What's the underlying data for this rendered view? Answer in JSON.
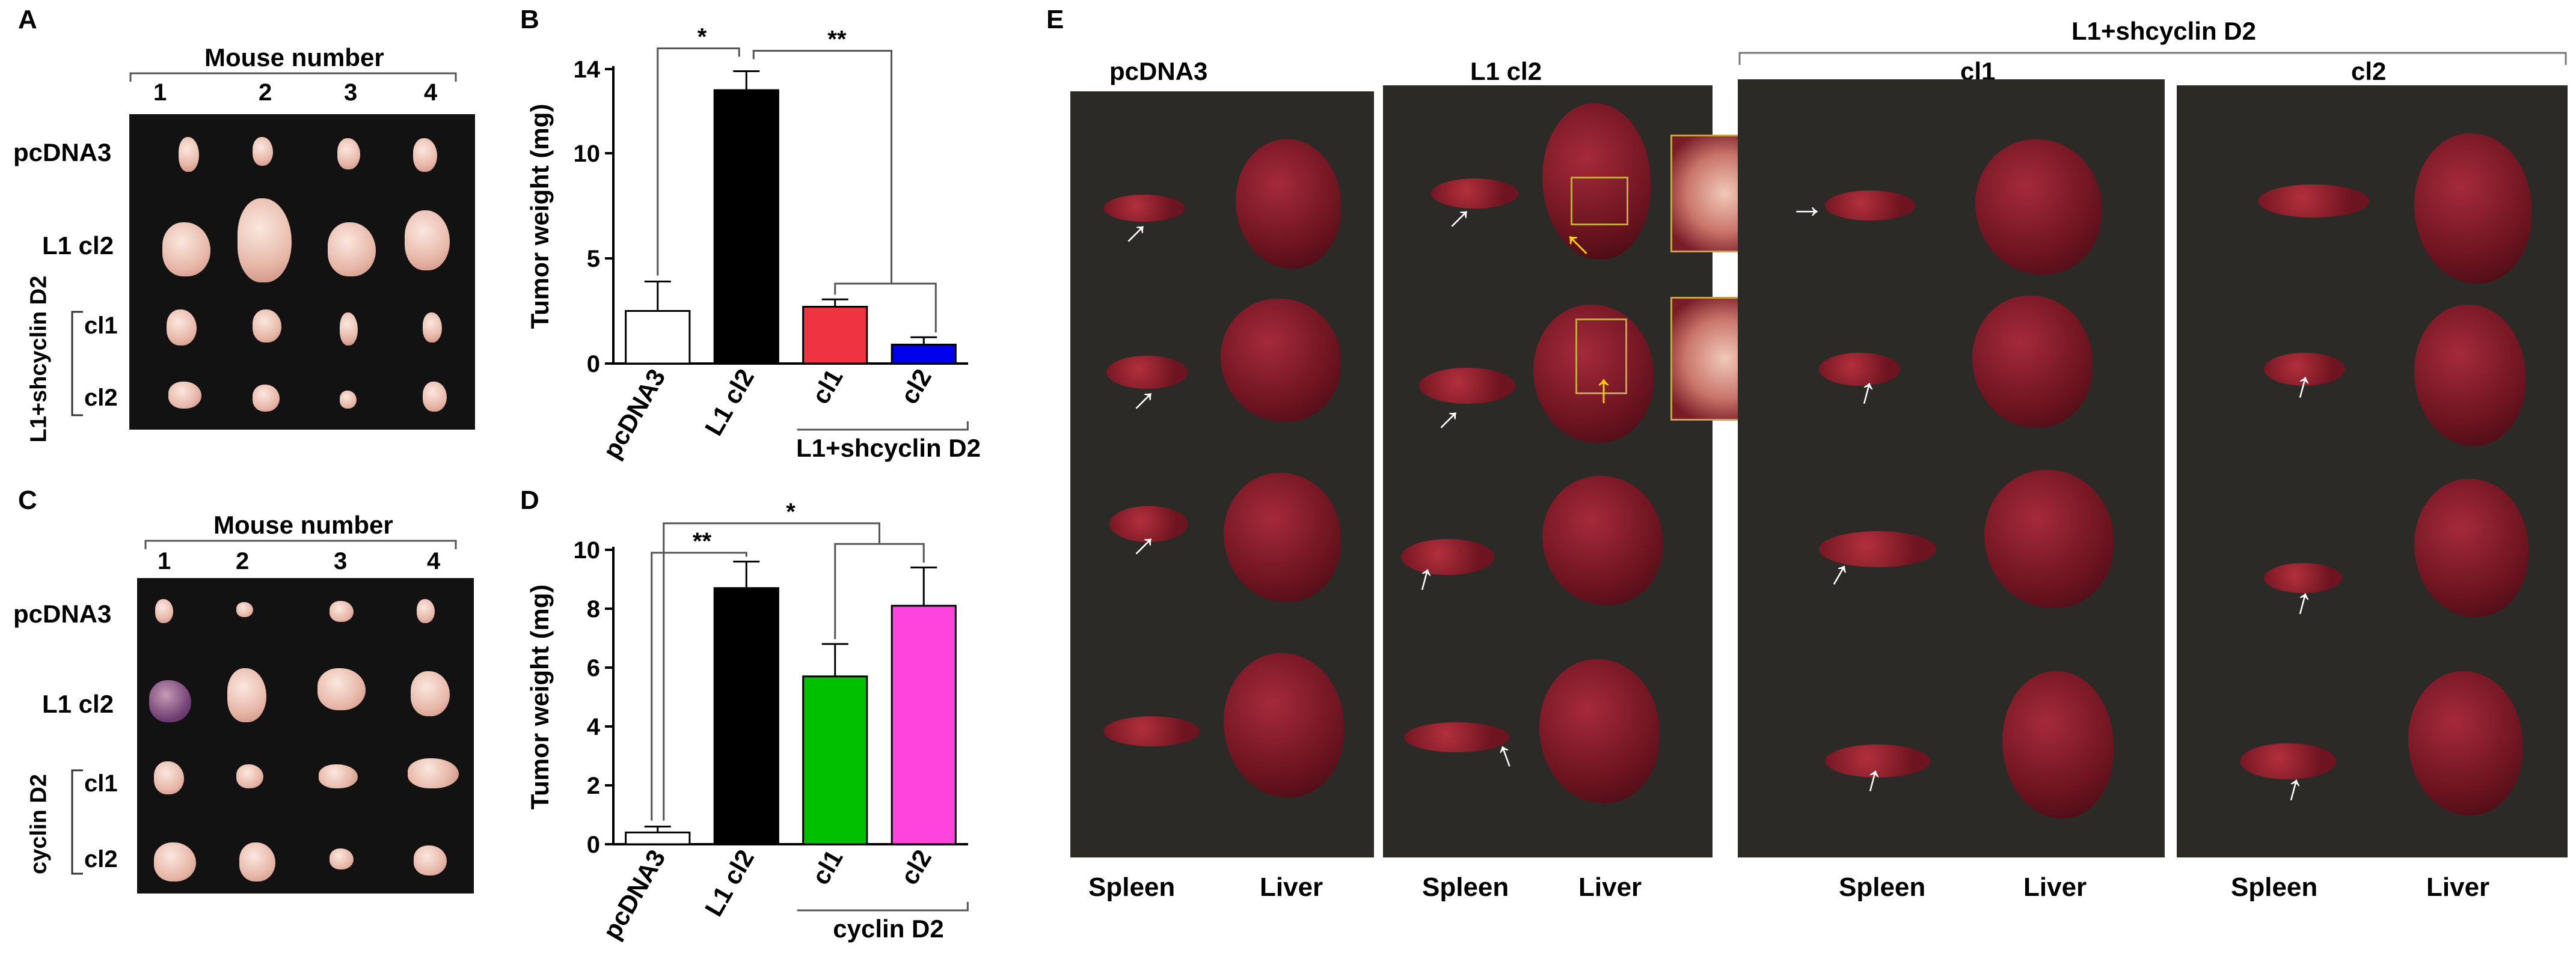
{
  "panel_labels": {
    "A": "A",
    "B": "B",
    "C": "C",
    "D": "D",
    "E": "E"
  },
  "panelA": {
    "header": "Mouse number",
    "mice": [
      "1",
      "2",
      "3",
      "4"
    ],
    "rows": [
      "pcDNA3",
      "L1 cl2",
      "cl1",
      "cl2"
    ],
    "group": "L1+shcyclin D2"
  },
  "panelC": {
    "header": "Mouse number",
    "mice": [
      "1",
      "2",
      "3",
      "4"
    ],
    "rows": [
      "pcDNA3",
      "L1 cl2",
      "cl1",
      "cl2"
    ],
    "group": "cyclin D2"
  },
  "panelE": {
    "group_header": "L1+shcyclin D2",
    "columns": [
      "pcDNA3",
      "L1 cl2",
      "cl1",
      "cl2"
    ],
    "organs": {
      "spleen": "Spleen",
      "liver": "Liver"
    },
    "arrow": "→",
    "arrow_up": "↑"
  },
  "chart_data": [
    {
      "type": "bar",
      "panel": "B",
      "categories": [
        "pcDNA3",
        "L1 cl2",
        "cl1",
        "cl2"
      ],
      "values": [
        2.5,
        13.0,
        2.7,
        0.9
      ],
      "errors": [
        1.4,
        0.9,
        0.35,
        0.35
      ],
      "colors": [
        "#ffffff",
        "#000000",
        "#ef3340",
        "#0000ee"
      ],
      "ylabel": "Tumor weight (mg)",
      "ylim": [
        0,
        14
      ],
      "yticks": [
        0,
        5,
        10,
        14
      ],
      "group_label": "L1+shcyclin D2",
      "significance": [
        "*",
        "**"
      ]
    },
    {
      "type": "bar",
      "panel": "D",
      "categories": [
        "pcDNA3",
        "L1 cl2",
        "cl1",
        "cl2"
      ],
      "values": [
        0.4,
        8.7,
        5.7,
        8.1
      ],
      "errors": [
        0.2,
        0.9,
        1.1,
        1.3
      ],
      "colors": [
        "#ffffff",
        "#000000",
        "#00c000",
        "#ff44dd"
      ],
      "ylabel": "Tumor weight (mg)",
      "ylim": [
        0,
        10
      ],
      "yticks": [
        0,
        2,
        4,
        6,
        8,
        10
      ],
      "group_label": "cyclin D2",
      "significance": [
        "**",
        "*"
      ]
    }
  ]
}
